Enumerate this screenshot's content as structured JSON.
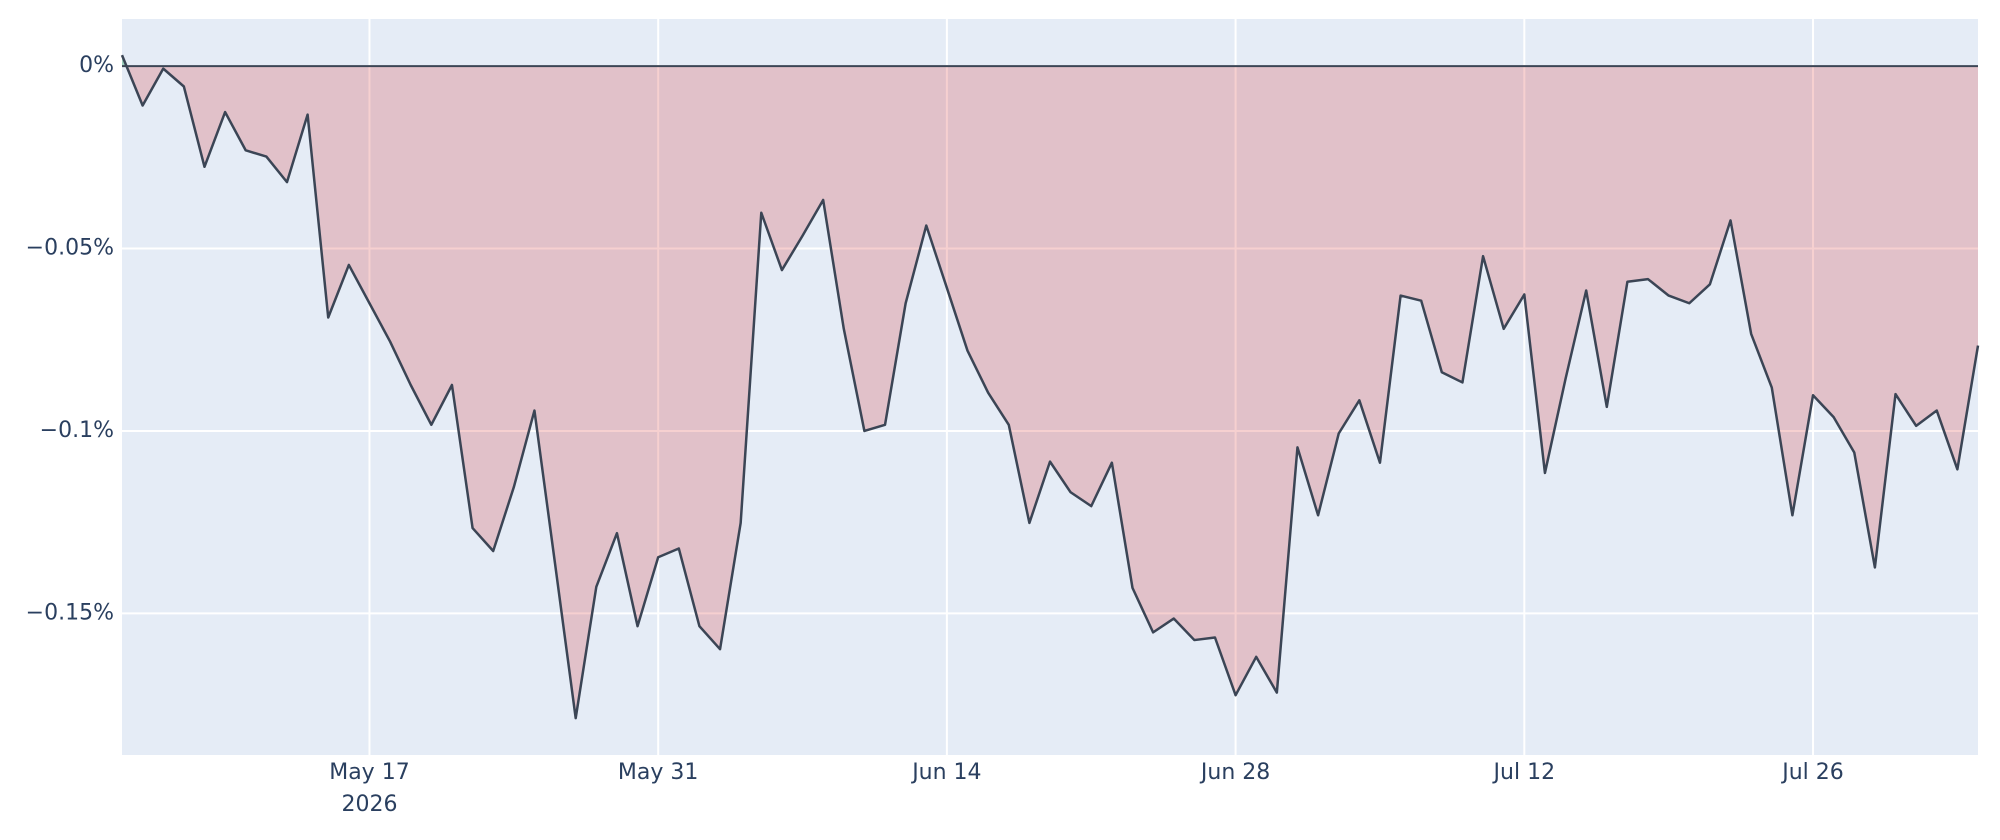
{
  "chart_data": {
    "type": "area",
    "x_start": "2026-05-05",
    "x_step_days": 1,
    "x": [
      "2026-05-05",
      "2026-05-06",
      "2026-05-07",
      "2026-05-08",
      "2026-05-09",
      "2026-05-10",
      "2026-05-11",
      "2026-05-12",
      "2026-05-13",
      "2026-05-14",
      "2026-05-15",
      "2026-05-16",
      "2026-05-17",
      "2026-05-18",
      "2026-05-19",
      "2026-05-20",
      "2026-05-21",
      "2026-05-22",
      "2026-05-23",
      "2026-05-24",
      "2026-05-25",
      "2026-05-26",
      "2026-05-27",
      "2026-05-28",
      "2026-05-29",
      "2026-05-30",
      "2026-05-31",
      "2026-06-01",
      "2026-06-02",
      "2026-06-03",
      "2026-06-04",
      "2026-06-05",
      "2026-06-06",
      "2026-06-07",
      "2026-06-08",
      "2026-06-09",
      "2026-06-10",
      "2026-06-11",
      "2026-06-12",
      "2026-06-13",
      "2026-06-14",
      "2026-06-15",
      "2026-06-16",
      "2026-06-17",
      "2026-06-18",
      "2026-06-19",
      "2026-06-20",
      "2026-06-21",
      "2026-06-22",
      "2026-06-23",
      "2026-06-24",
      "2026-06-25",
      "2026-06-26",
      "2026-06-27",
      "2026-06-28",
      "2026-06-29",
      "2026-06-30",
      "2026-07-01",
      "2026-07-02",
      "2026-07-03",
      "2026-07-04",
      "2026-07-05",
      "2026-07-06",
      "2026-07-07",
      "2026-07-08",
      "2026-07-09",
      "2026-07-10",
      "2026-07-11",
      "2026-07-12",
      "2026-07-13",
      "2026-07-14",
      "2026-07-15",
      "2026-07-16",
      "2026-07-17",
      "2026-07-18",
      "2026-07-19",
      "2026-07-20",
      "2026-07-21",
      "2026-07-22",
      "2026-07-23",
      "2026-07-24",
      "2026-07-25",
      "2026-07-26",
      "2026-07-27",
      "2026-07-28",
      "2026-07-29",
      "2026-07-30",
      "2026-07-31",
      "2026-08-01",
      "2026-08-02",
      "2026-08-03"
    ],
    "values": [
      0.003,
      -0.0108,
      -0.0007,
      -0.0056,
      -0.0276,
      -0.0126,
      -0.0231,
      -0.0248,
      -0.0318,
      -0.0133,
      -0.0689,
      -0.0545,
      -0.065,
      -0.0755,
      -0.0874,
      -0.0983,
      -0.0874,
      -0.1266,
      -0.1329,
      -0.1154,
      -0.0944,
      -0.1364,
      -0.1787,
      -0.1427,
      -0.128,
      -0.1535,
      -0.1346,
      -0.1322,
      -0.1535,
      -0.1598,
      -0.1252,
      -0.0402,
      -0.0559,
      -0.0465,
      -0.0367,
      -0.072,
      -0.1,
      -0.0983,
      -0.065,
      -0.0437,
      -0.0608,
      -0.078,
      -0.0895,
      -0.0983,
      -0.1252,
      -0.1084,
      -0.1168,
      -0.1206,
      -0.1087,
      -0.143,
      -0.1552,
      -0.1514,
      -0.1573,
      -0.1566,
      -0.1724,
      -0.1619,
      -0.1717,
      -0.1045,
      -0.1231,
      -0.1007,
      -0.0916,
      -0.1087,
      -0.0629,
      -0.0643,
      -0.0839,
      -0.0867,
      -0.0521,
      -0.072,
      -0.0626,
      -0.1115,
      -0.0857,
      -0.0615,
      -0.0934,
      -0.0591,
      -0.0584,
      -0.0629,
      -0.065,
      -0.0598,
      -0.0423,
      -0.0734,
      -0.0881,
      -0.1231,
      -0.0902,
      -0.0962,
      -0.1059,
      -0.1374,
      -0.0899,
      -0.0986,
      -0.0944,
      -0.1105,
      -0.0766
    ],
    "line_color": "#3b4555",
    "negative_fill": "rgba(214,39,40,0.22)",
    "positive_fill": "rgba(44,160,101,0.4)",
    "xlim": [
      "2026-05-05",
      "2026-08-03"
    ],
    "ylim": [
      -0.1888,
      0.0129
    ],
    "yticks": [
      {
        "value": -0.15,
        "label": "−0.15%"
      },
      {
        "value": -0.1,
        "label": "−0.1%"
      },
      {
        "value": -0.05,
        "label": "−0.05%"
      },
      {
        "value": 0,
        "label": "0%"
      }
    ],
    "xticks": [
      {
        "value": "2026-05-17",
        "label": "May 17",
        "sublabel": "2026"
      },
      {
        "value": "2026-05-31",
        "label": "May 31"
      },
      {
        "value": "2026-06-14",
        "label": "Jun 14"
      },
      {
        "value": "2026-06-28",
        "label": "Jun 28"
      },
      {
        "value": "2026-07-12",
        "label": "Jul 12"
      },
      {
        "value": "2026-07-26",
        "label": "Jul 26"
      }
    ],
    "grid": true
  }
}
